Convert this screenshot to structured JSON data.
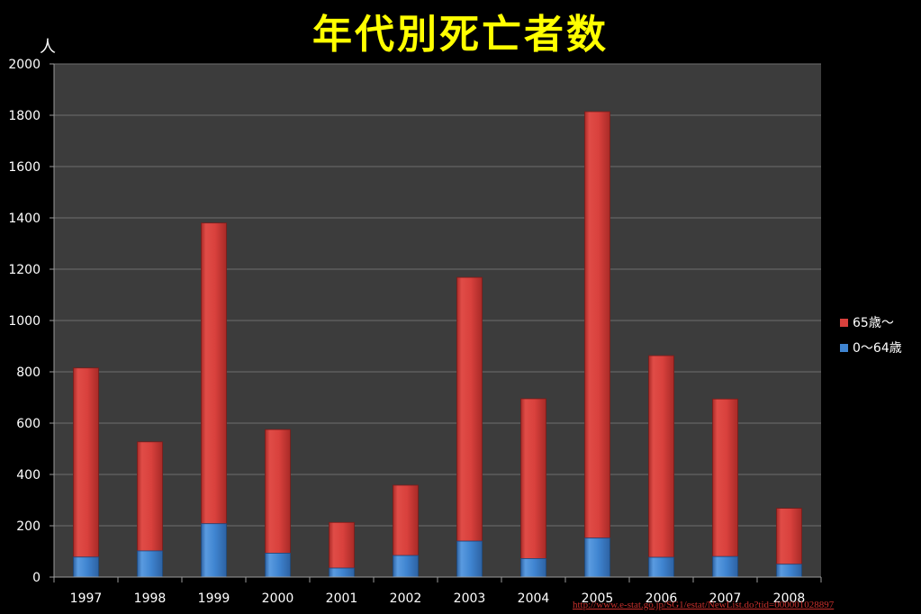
{
  "title": "年代別死亡者数",
  "source_link": "http://www.e-stat.go.jp/SG1/estat/NewList.do?tid=000001028897",
  "colors": {
    "background": "#000000",
    "plot_area": "#3c3c3c",
    "title": "#ffff00",
    "series_65_plus": "#d9413d",
    "series_0_64": "#3f84d0",
    "grid": "#6e6e6e"
  },
  "chart_data": {
    "type": "bar",
    "stacked": true,
    "ylabel": "人",
    "xlabel": "",
    "ylim": [
      0,
      2000
    ],
    "y_ticks": [
      0,
      200,
      400,
      600,
      800,
      1000,
      1200,
      1400,
      1600,
      1800,
      2000
    ],
    "grid": true,
    "legend_position": "right",
    "categories": [
      "1997",
      "1998",
      "1999",
      "2000",
      "2001",
      "2002",
      "2003",
      "2004",
      "2005",
      "2006",
      "2007",
      "2008"
    ],
    "series": [
      {
        "name": "0〜64歳",
        "values": [
          78,
          102,
          208,
          93,
          35,
          84,
          140,
          72,
          152,
          77,
          80,
          50
        ]
      },
      {
        "name": "65歳〜",
        "values": [
          737,
          425,
          1172,
          482,
          178,
          274,
          1028,
          623,
          1662,
          786,
          614,
          218
        ]
      }
    ]
  }
}
